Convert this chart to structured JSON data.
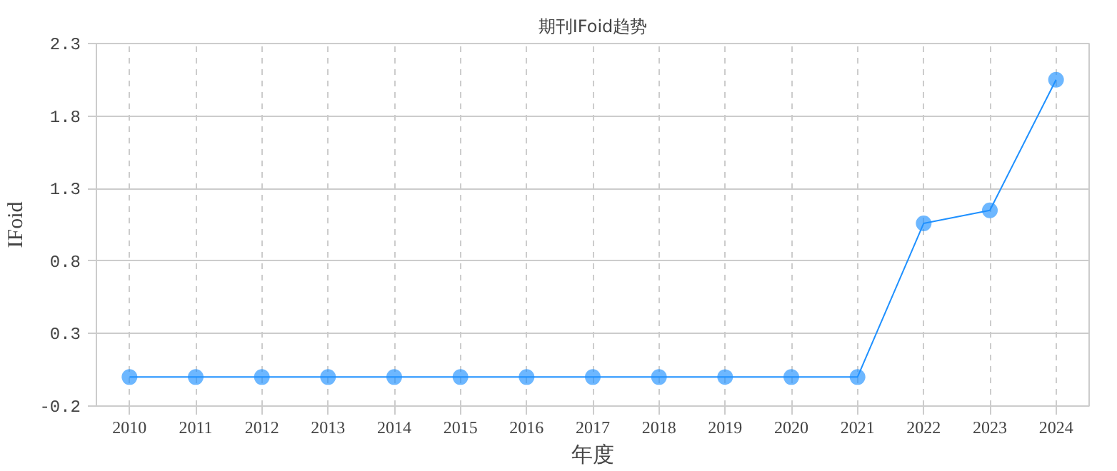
{
  "chart_data": {
    "type": "line",
    "title": "期刊IFoid趋势",
    "xlabel": "年度",
    "ylabel": "IFoid",
    "categories": [
      "2010",
      "2011",
      "2012",
      "2013",
      "2014",
      "2015",
      "2016",
      "2017",
      "2018",
      "2019",
      "2020",
      "2021",
      "2022",
      "2023",
      "2024"
    ],
    "series": [
      {
        "color": "#1e90ff",
        "values": [
          0,
          0,
          0,
          0,
          0,
          0,
          0,
          0,
          0,
          0,
          0,
          0,
          1.06,
          1.15,
          2.05
        ]
      }
    ],
    "ylim": [
      -0.2,
      2.3
    ],
    "yticks": [
      -0.2,
      0.3,
      0.8,
      1.3,
      1.8,
      2.3
    ],
    "grid": true,
    "marker": "circle",
    "line_style": "solid"
  }
}
